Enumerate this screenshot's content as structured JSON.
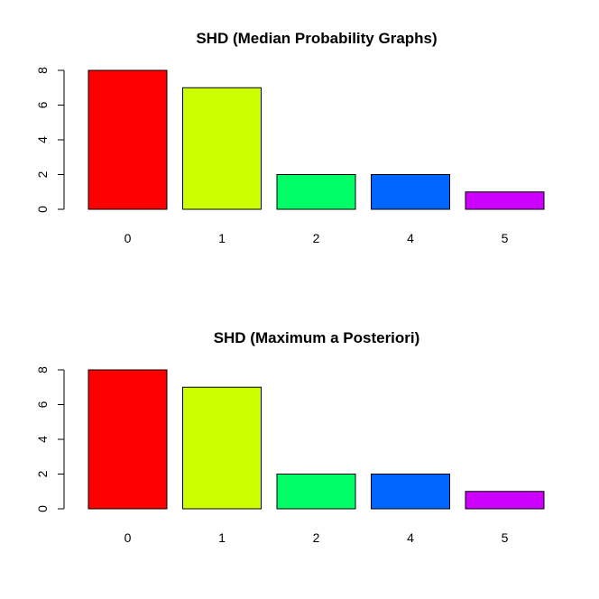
{
  "chart_data": [
    {
      "type": "bar",
      "title": "SHD (Median Probability Graphs)",
      "xlabel": "",
      "ylabel": "",
      "categories": [
        "0",
        "1",
        "2",
        "4",
        "5"
      ],
      "values": [
        8,
        7,
        2,
        2,
        1
      ],
      "colors": [
        "#FF0000",
        "#CCFF00",
        "#00FF66",
        "#0066FF",
        "#CC00FF"
      ],
      "ylim": [
        0,
        8
      ],
      "yticks": [
        "0",
        "2",
        "4",
        "6",
        "8"
      ],
      "grid": false,
      "legend": "none"
    },
    {
      "type": "bar",
      "title": "SHD (Maximum a Posteriori)",
      "xlabel": "",
      "ylabel": "",
      "categories": [
        "0",
        "1",
        "2",
        "4",
        "5"
      ],
      "values": [
        8,
        7,
        2,
        2,
        1
      ],
      "colors": [
        "#FF0000",
        "#CCFF00",
        "#00FF66",
        "#0066FF",
        "#CC00FF"
      ],
      "ylim": [
        0,
        8
      ],
      "yticks": [
        "0",
        "2",
        "4",
        "6",
        "8"
      ],
      "grid": false,
      "legend": "none"
    }
  ]
}
